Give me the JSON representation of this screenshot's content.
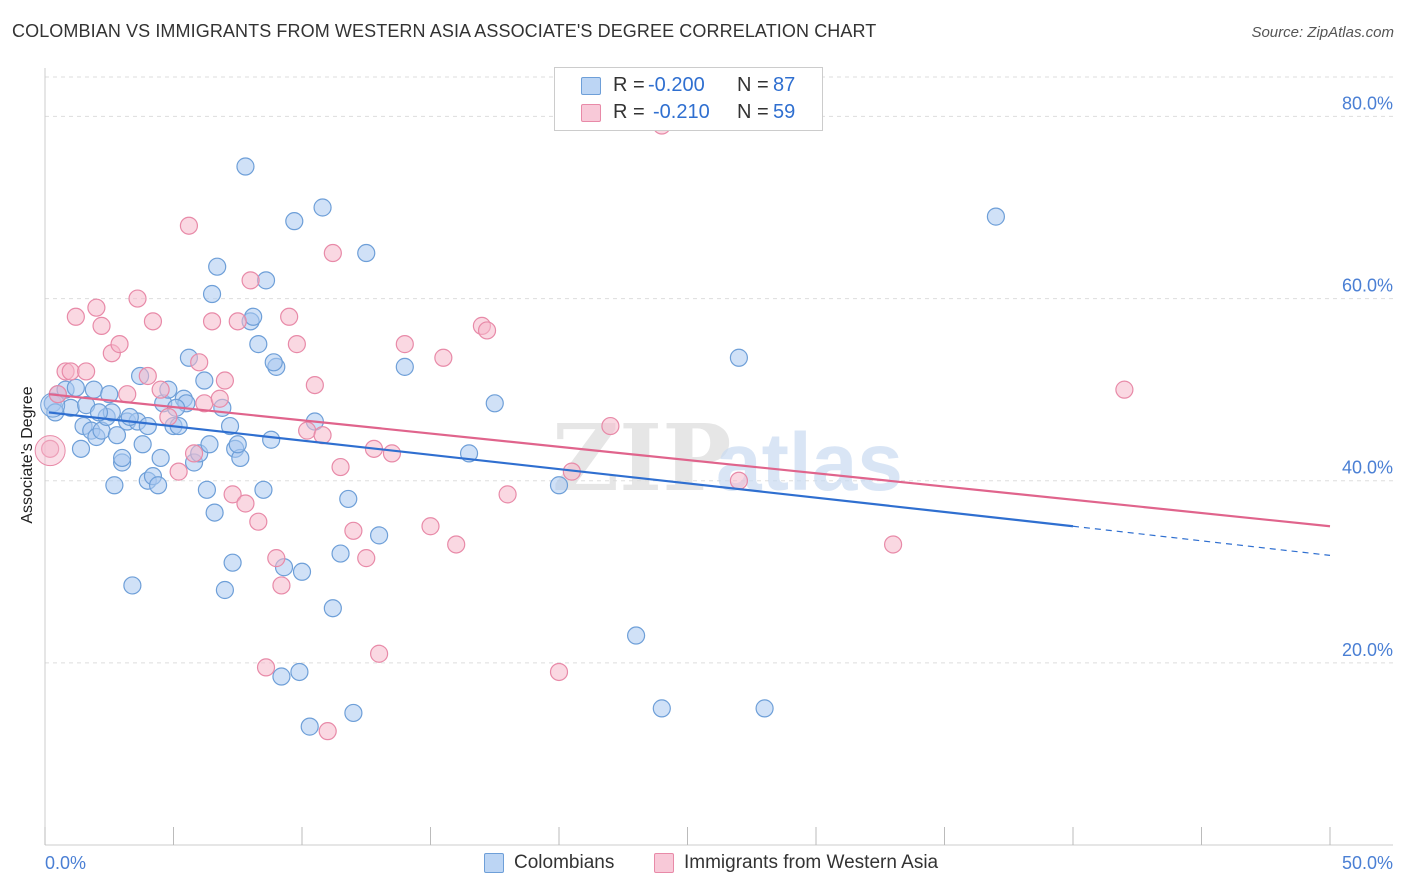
{
  "header": {
    "title": "COLOMBIAN VS IMMIGRANTS FROM WESTERN ASIA ASSOCIATE'S DEGREE CORRELATION CHART",
    "source": "Source: ZipAtlas.com"
  },
  "watermark": {
    "zip": "ZIP",
    "atlas": "atlas"
  },
  "legend": {
    "r_label": "R =",
    "n_label": "N =",
    "series": [
      {
        "name": "Colombians",
        "r": "-0.200",
        "n": "87"
      },
      {
        "name": "Immigrants from Western Asia",
        "r": "-0.210",
        "n": "59"
      }
    ]
  },
  "colors": {
    "blue_fill": "#a9c8f0",
    "blue_stroke": "#6e9fd8",
    "blue_line": "#2f6fd0",
    "pink_fill": "#f5b8cb",
    "pink_stroke": "#e88aa8",
    "pink_line": "#e0648c",
    "tick_label": "#4a7fd4",
    "grid": "#dddddd"
  },
  "chart_data": {
    "type": "scatter",
    "title": "COLOMBIAN VS IMMIGRANTS FROM WESTERN ASIA ASSOCIATE'S DEGREE CORRELATION CHART",
    "xlabel": "",
    "ylabel": "Associate's Degree",
    "xlim": [
      0,
      50
    ],
    "ylim": [
      0,
      84
    ],
    "x_tick_labels": [
      "0.0%",
      "50.0%"
    ],
    "y_ticks": [
      20,
      40,
      60,
      80
    ],
    "y_tick_labels": [
      "20.0%",
      "40.0%",
      "60.0%",
      "80.0%"
    ],
    "grid": true,
    "legend_position": "top-center",
    "series": [
      {
        "name": "Colombians",
        "trend": {
          "x0": 0.15,
          "y0": 47.5,
          "x1": 40,
          "y1": 35.0,
          "dash_to_x": 50,
          "dash_to_y": 31.8
        },
        "points": [
          [
            0.3,
            48.5
          ],
          [
            0.5,
            49.5
          ],
          [
            0.8,
            50.0
          ],
          [
            1.0,
            48.0
          ],
          [
            1.2,
            50.2
          ],
          [
            1.4,
            43.5
          ],
          [
            1.5,
            46.0
          ],
          [
            1.6,
            48.3
          ],
          [
            1.8,
            45.5
          ],
          [
            1.9,
            50.0
          ],
          [
            2.0,
            44.8
          ],
          [
            2.2,
            45.5
          ],
          [
            2.4,
            47.0
          ],
          [
            2.5,
            49.5
          ],
          [
            2.6,
            47.5
          ],
          [
            2.7,
            39.5
          ],
          [
            2.8,
            45.0
          ],
          [
            3.0,
            42.0
          ],
          [
            3.0,
            42.5
          ],
          [
            3.2,
            46.5
          ],
          [
            3.4,
            28.5
          ],
          [
            3.6,
            46.5
          ],
          [
            3.7,
            51.5
          ],
          [
            3.8,
            44.0
          ],
          [
            4.0,
            46.0
          ],
          [
            4.0,
            40.0
          ],
          [
            4.2,
            40.5
          ],
          [
            4.4,
            39.5
          ],
          [
            4.5,
            42.5
          ],
          [
            4.6,
            48.5
          ],
          [
            4.8,
            50.0
          ],
          [
            5.0,
            46.0
          ],
          [
            5.2,
            46.0
          ],
          [
            5.4,
            49.0
          ],
          [
            5.5,
            48.5
          ],
          [
            5.6,
            53.5
          ],
          [
            5.8,
            42.0
          ],
          [
            6.0,
            43.0
          ],
          [
            6.2,
            51.0
          ],
          [
            6.3,
            39.0
          ],
          [
            6.5,
            60.5
          ],
          [
            6.6,
            36.5
          ],
          [
            6.7,
            63.5
          ],
          [
            6.9,
            48.0
          ],
          [
            7.0,
            28.0
          ],
          [
            7.2,
            46.0
          ],
          [
            7.3,
            31.0
          ],
          [
            7.4,
            43.5
          ],
          [
            7.6,
            42.5
          ],
          [
            7.8,
            74.5
          ],
          [
            8.0,
            57.5
          ],
          [
            8.1,
            58.0
          ],
          [
            8.3,
            55.0
          ],
          [
            8.5,
            39.0
          ],
          [
            8.6,
            62.0
          ],
          [
            8.8,
            44.5
          ],
          [
            9.0,
            52.5
          ],
          [
            9.2,
            18.5
          ],
          [
            9.3,
            30.5
          ],
          [
            9.7,
            68.5
          ],
          [
            10.0,
            30.0
          ],
          [
            10.3,
            13.0
          ],
          [
            10.5,
            46.5
          ],
          [
            10.8,
            70.0
          ],
          [
            11.2,
            26.0
          ],
          [
            11.5,
            32.0
          ],
          [
            11.8,
            38.0
          ],
          [
            12.0,
            14.5
          ],
          [
            12.5,
            65.0
          ],
          [
            13.0,
            34.0
          ],
          [
            14.0,
            52.5
          ],
          [
            16.5,
            43.0
          ],
          [
            17.5,
            48.5
          ],
          [
            20.0,
            39.5
          ],
          [
            23.0,
            23.0
          ],
          [
            24.0,
            15.0
          ],
          [
            27.0,
            53.5
          ],
          [
            28.0,
            15.0
          ],
          [
            37.0,
            69.0
          ],
          [
            0.4,
            47.5
          ],
          [
            2.1,
            47.5
          ],
          [
            3.3,
            47.0
          ],
          [
            5.1,
            48.0
          ],
          [
            6.4,
            44.0
          ],
          [
            7.5,
            44.0
          ],
          [
            8.9,
            53.0
          ],
          [
            9.9,
            19.0
          ]
        ]
      },
      {
        "name": "Immigrants from Western Asia",
        "trend": {
          "x0": 0.15,
          "y0": 49.5,
          "x1": 50,
          "y1": 35.0
        },
        "points": [
          [
            0.2,
            43.5
          ],
          [
            0.5,
            49.5
          ],
          [
            0.8,
            52.0
          ],
          [
            1.0,
            52.0
          ],
          [
            1.2,
            58.0
          ],
          [
            1.6,
            52.0
          ],
          [
            2.0,
            59.0
          ],
          [
            2.2,
            57.0
          ],
          [
            2.6,
            54.0
          ],
          [
            2.9,
            55.0
          ],
          [
            3.2,
            49.5
          ],
          [
            3.6,
            60.0
          ],
          [
            4.0,
            51.5
          ],
          [
            4.2,
            57.5
          ],
          [
            4.5,
            50.0
          ],
          [
            4.8,
            47.0
          ],
          [
            5.2,
            41.0
          ],
          [
            5.6,
            68.0
          ],
          [
            5.8,
            43.0
          ],
          [
            6.2,
            48.5
          ],
          [
            6.5,
            57.5
          ],
          [
            6.8,
            49.0
          ],
          [
            7.0,
            51.0
          ],
          [
            7.3,
            38.5
          ],
          [
            7.5,
            57.5
          ],
          [
            7.8,
            37.5
          ],
          [
            8.0,
            62.0
          ],
          [
            8.3,
            35.5
          ],
          [
            8.6,
            19.5
          ],
          [
            9.0,
            31.5
          ],
          [
            9.2,
            28.5
          ],
          [
            9.5,
            58.0
          ],
          [
            9.8,
            55.0
          ],
          [
            10.2,
            45.5
          ],
          [
            10.5,
            50.5
          ],
          [
            10.8,
            45.0
          ],
          [
            11.0,
            12.5
          ],
          [
            11.2,
            65.0
          ],
          [
            11.5,
            41.5
          ],
          [
            12.0,
            34.5
          ],
          [
            12.5,
            31.5
          ],
          [
            12.8,
            43.5
          ],
          [
            13.0,
            21.0
          ],
          [
            13.5,
            43.0
          ],
          [
            14.0,
            55.0
          ],
          [
            15.0,
            35.0
          ],
          [
            15.5,
            53.5
          ],
          [
            16.0,
            33.0
          ],
          [
            17.0,
            57.0
          ],
          [
            17.2,
            56.5
          ],
          [
            18.0,
            38.5
          ],
          [
            20.0,
            19.0
          ],
          [
            22.0,
            46.0
          ],
          [
            24.0,
            79.0
          ],
          [
            27.0,
            40.0
          ],
          [
            33.0,
            33.0
          ],
          [
            42.0,
            50.0
          ],
          [
            20.5,
            41.0
          ],
          [
            6.0,
            53.0
          ]
        ]
      }
    ]
  }
}
